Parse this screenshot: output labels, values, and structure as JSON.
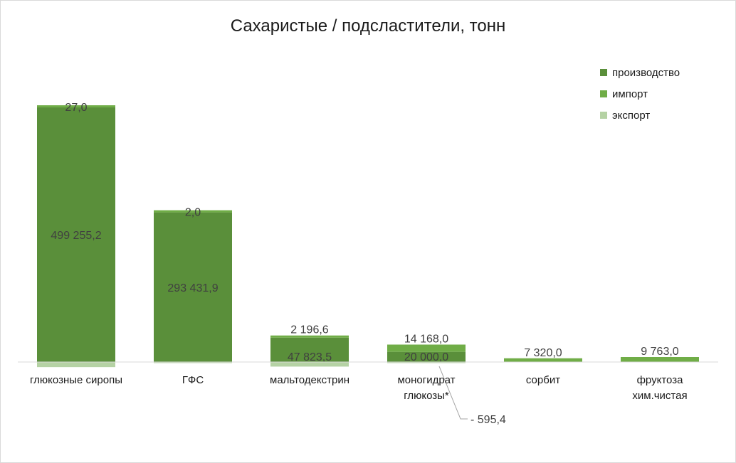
{
  "chart_data": {
    "type": "bar",
    "stacked": true,
    "title": "Сахаристые / подсластители, тонн",
    "categories": [
      [
        "глюкозные сиропы"
      ],
      [
        "ГФС"
      ],
      [
        "мальтодекстрин"
      ],
      [
        "моногидрат",
        "глюкозы*"
      ],
      [
        "сорбит"
      ],
      [
        "фруктоза",
        "хим.чистая"
      ]
    ],
    "series": [
      {
        "name": "производство",
        "color": "#5a8f3a",
        "values": [
          499255.2,
          293431.9,
          47823.5,
          20000.0,
          0,
          0
        ],
        "labels": [
          "499 255,2",
          "293 431,9",
          "47 823,5",
          "20 000,0",
          "",
          ""
        ]
      },
      {
        "name": "импорт",
        "color": "#70ad47",
        "values": [
          27.0,
          2.0,
          2196.6,
          14168.0,
          7320.0,
          9763.0
        ],
        "labels": [
          "27,0",
          "2,0",
          "2 196,6",
          "14 168,0",
          "7 320,0",
          "9 763,0"
        ]
      },
      {
        "name": "экспорт",
        "color": "#b5d2a4",
        "values": [
          -10000,
          -1500,
          -9000,
          -595.4,
          0,
          0
        ],
        "labels": [
          "",
          "",
          "",
          "- 595,4",
          "",
          ""
        ]
      }
    ],
    "ylim": [
      -30000,
      530000
    ],
    "legend_position": "top-right",
    "grid": false,
    "xlabel": "",
    "ylabel": ""
  }
}
